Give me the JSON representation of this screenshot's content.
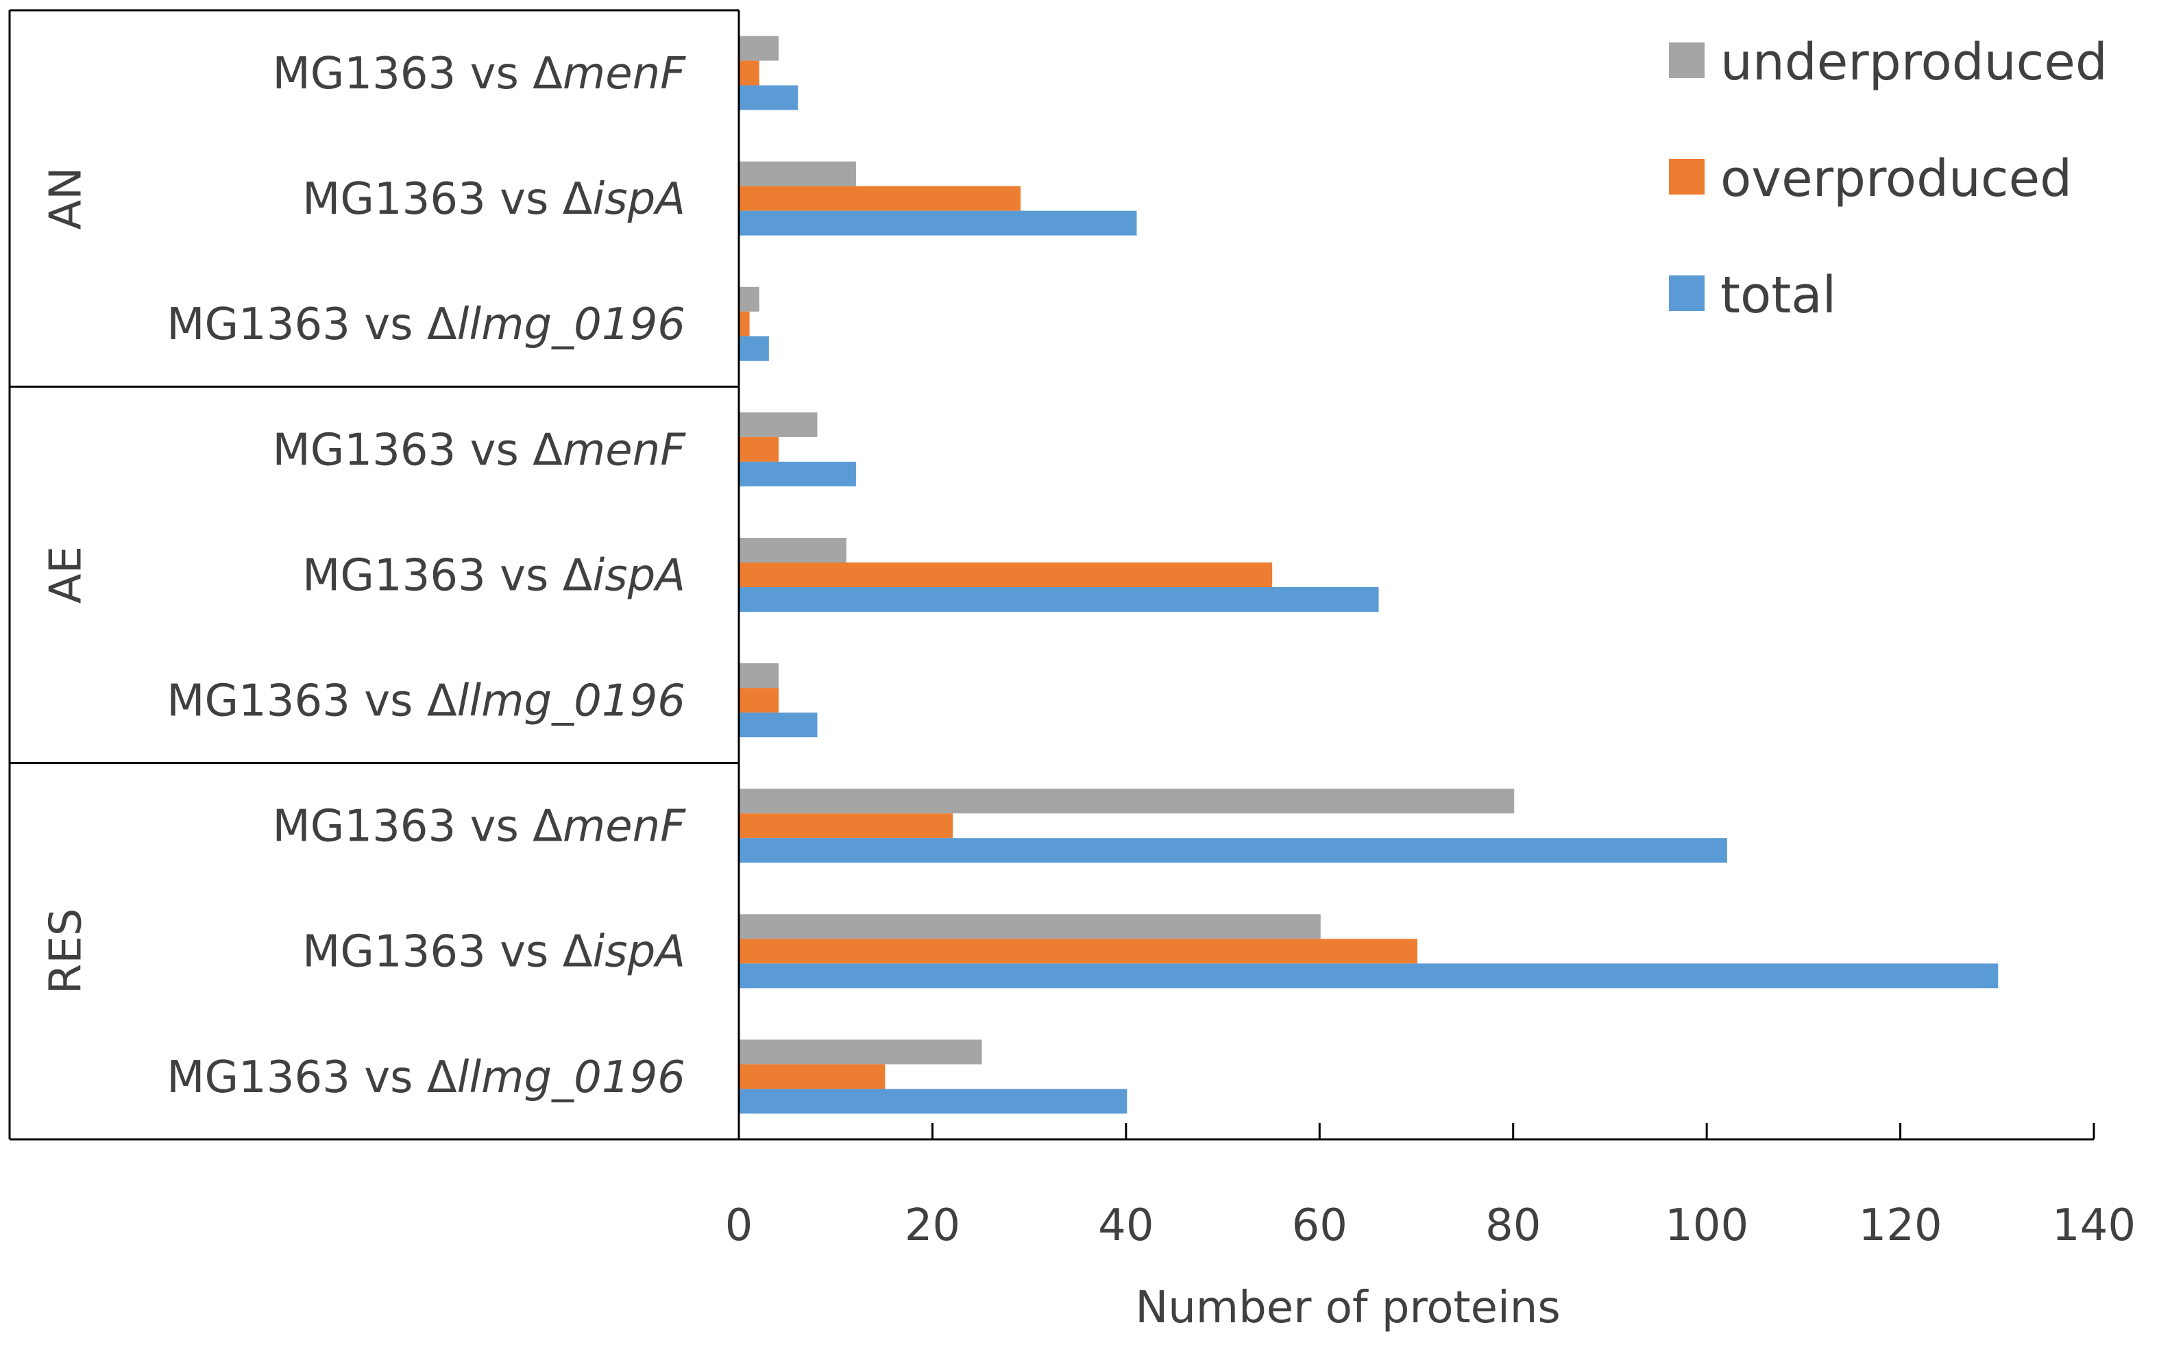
{
  "chart_data": {
    "type": "bar",
    "orientation": "horizontal",
    "xlabel": "Number of proteins",
    "xlim": [
      0,
      140
    ],
    "xticks": [
      0,
      20,
      40,
      60,
      80,
      100,
      120,
      140
    ],
    "grid": false,
    "legend_position": "top-right",
    "groups": [
      {
        "name": "AN",
        "categories": [
          {
            "prefix": "MG1363 vs Δ",
            "italic": "menF"
          },
          {
            "prefix": "MG1363 vs Δ",
            "italic": "ispA"
          },
          {
            "prefix": "MG1363 vs Δ",
            "italic": "llmg_0196"
          }
        ]
      },
      {
        "name": "AE",
        "categories": [
          {
            "prefix": "MG1363 vs Δ",
            "italic": "menF"
          },
          {
            "prefix": "MG1363 vs Δ",
            "italic": "ispA"
          },
          {
            "prefix": "MG1363 vs Δ",
            "italic": "llmg_0196"
          }
        ]
      },
      {
        "name": "RES",
        "categories": [
          {
            "prefix": "MG1363 vs Δ",
            "italic": "menF"
          },
          {
            "prefix": "MG1363 vs Δ",
            "italic": "ispA"
          },
          {
            "prefix": "MG1363 vs Δ",
            "italic": "llmg_0196"
          }
        ]
      }
    ],
    "series": [
      {
        "name": "underproduced",
        "color": "#A5A5A5",
        "values": [
          4,
          12,
          2,
          8,
          11,
          4,
          80,
          60,
          25
        ]
      },
      {
        "name": "overproduced",
        "color": "#ED7D31",
        "values": [
          2,
          29,
          1,
          4,
          55,
          4,
          22,
          70,
          15
        ]
      },
      {
        "name": "total",
        "color": "#5B9BD5",
        "values": [
          6,
          41,
          3,
          12,
          66,
          8,
          102,
          130,
          40
        ]
      }
    ]
  }
}
